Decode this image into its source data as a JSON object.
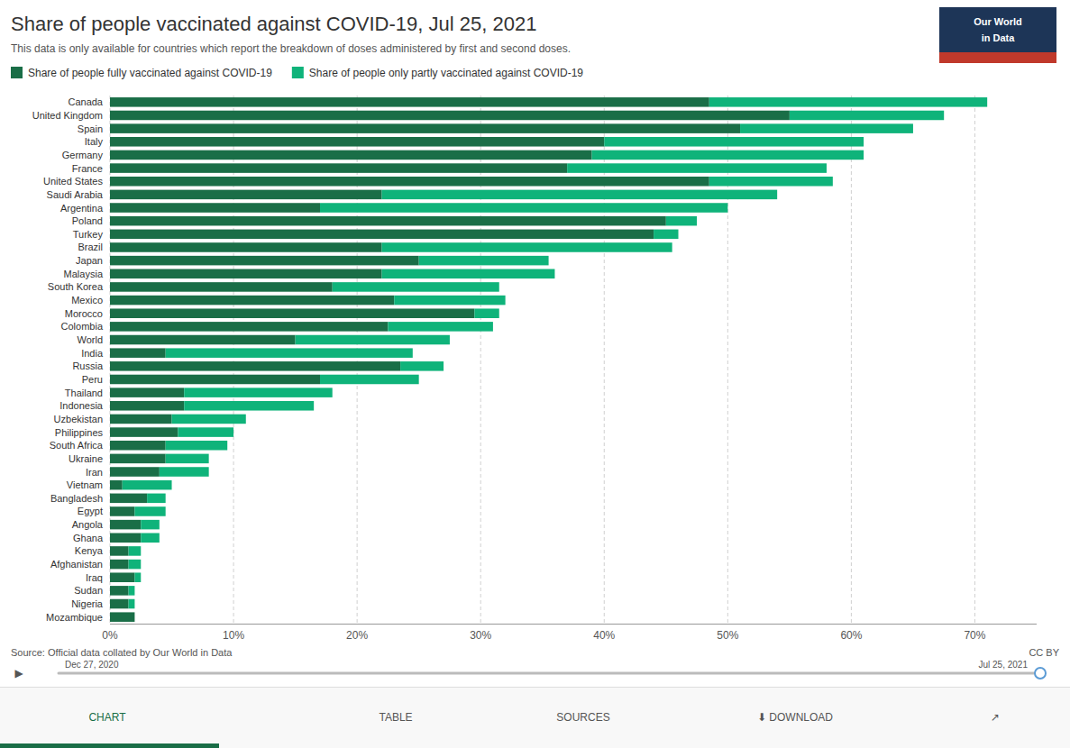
{
  "chart_data": {
    "type": "bar",
    "orientation": "horizontal",
    "stacked": true,
    "grid": true,
    "legend": "upper left",
    "title": "Share of people vaccinated against COVID-19, Jul 25, 2021",
    "subtitle": "This data is only available for countries which report the breakdown of doses administered by first and second doses.",
    "annotations": [
      "Source: Official data collated by Our World in Data",
      "CC BY",
      "▶",
      "Dec 27, 2020",
      "Jul 25, 2021",
      "Our World",
      "in Data",
      "CHART",
      "TABLE",
      "SOURCES",
      "⬇ DOWNLOAD",
      "↗"
    ],
    "categories": [
      "Canada",
      "United Kingdom",
      "Spain",
      "Italy",
      "Germany",
      "France",
      "United States",
      "Saudi Arabia",
      "Argentina",
      "Poland",
      "Turkey",
      "Brazil",
      "Japan",
      "Malaysia",
      "South Korea",
      "Mexico",
      "Morocco",
      "Colombia",
      "World",
      "India",
      "Russia",
      "Peru",
      "Thailand",
      "Indonesia",
      "Uzbekistan",
      "Philippines",
      "South Africa",
      "Ukraine",
      "Iran",
      "Vietnam",
      "Bangladesh",
      "Egypt",
      "Angola",
      "Ghana",
      "Kenya",
      "Afghanistan",
      "Iraq",
      "Sudan",
      "Nigeria",
      "Mozambique"
    ],
    "series": [
      {
        "name": "Share of people fully vaccinated against COVID-19",
        "color": "#1a6e47",
        "values": [
          48.5,
          55.0,
          51.0,
          40.0,
          39.0,
          37.0,
          48.5,
          22.0,
          17.0,
          45.0,
          44.0,
          22.0,
          25.0,
          22.0,
          18.0,
          23.0,
          29.5,
          22.5,
          15.0,
          4.5,
          23.5,
          17.0,
          6.0,
          6.0,
          5.0,
          5.5,
          4.5,
          4.5,
          4.0,
          1.0,
          3.0,
          2.0,
          2.5,
          2.5,
          1.5,
          1.5,
          2.0,
          1.5,
          1.5,
          2.0
        ]
      },
      {
        "name": "Share of people only partly vaccinated against COVID-19",
        "color": "#0fb37a",
        "values": [
          22.5,
          12.5,
          14.0,
          21.0,
          22.0,
          21.0,
          10.0,
          32.0,
          33.0,
          2.5,
          2.0,
          23.5,
          10.5,
          14.0,
          13.5,
          9.0,
          2.0,
          8.5,
          12.5,
          20.0,
          3.5,
          8.0,
          12.0,
          10.5,
          6.0,
          4.5,
          5.0,
          3.5,
          4.0,
          4.0,
          1.5,
          2.5,
          1.5,
          1.5,
          1.0,
          1.0,
          0.5,
          0.5,
          0.5,
          0.0
        ]
      }
    ],
    "xlim": [
      0,
      75
    ],
    "xticks": [
      {
        "value": 0,
        "label": "0%"
      },
      {
        "value": 10,
        "label": "10%"
      },
      {
        "value": 20,
        "label": "20%"
      },
      {
        "value": 30,
        "label": "30%"
      },
      {
        "value": 40,
        "label": "40%"
      },
      {
        "value": 50,
        "label": "50%"
      },
      {
        "value": 60,
        "label": "60%"
      },
      {
        "value": 70,
        "label": "70%"
      }
    ]
  }
}
